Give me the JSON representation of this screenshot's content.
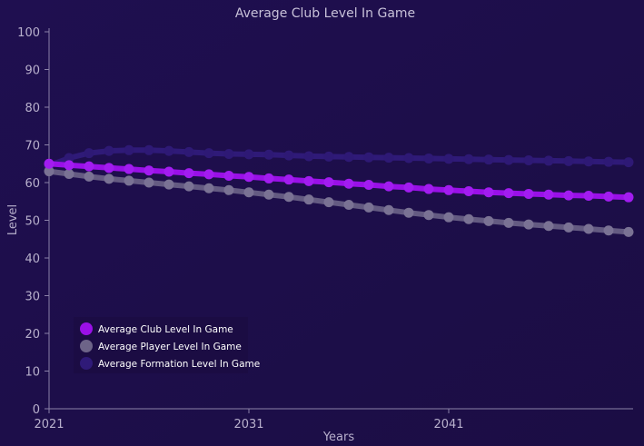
{
  "chart_data": {
    "type": "line",
    "title": "Average Club Level In Game",
    "xlabel": "Years",
    "ylabel": "Level",
    "xlim": [
      2021,
      2050
    ],
    "ylim": [
      0,
      100
    ],
    "x_ticks": [
      "2021",
      "2031",
      "2041"
    ],
    "y_ticks": [
      "0",
      "10",
      "20",
      "30",
      "40",
      "50",
      "60",
      "70",
      "80",
      "90",
      "100"
    ],
    "x": [
      2021,
      2022,
      2023,
      2024,
      2025,
      2026,
      2027,
      2028,
      2029,
      2030,
      2031,
      2032,
      2033,
      2034,
      2035,
      2036,
      2037,
      2038,
      2039,
      2040,
      2041,
      2042,
      2043,
      2044,
      2045,
      2046,
      2047,
      2048,
      2049,
      2050
    ],
    "series": [
      {
        "name": "Average Club Level In Game",
        "color": "#9a10e8",
        "values": [
          65.0,
          64.6,
          64.3,
          63.9,
          63.6,
          63.2,
          62.9,
          62.5,
          62.2,
          61.8,
          61.5,
          61.1,
          60.8,
          60.4,
          60.1,
          59.7,
          59.4,
          59.0,
          58.7,
          58.3,
          58.0,
          57.7,
          57.4,
          57.2,
          57.0,
          56.8,
          56.6,
          56.5,
          56.3,
          56.1
        ]
      },
      {
        "name": "Average Player Level In Game",
        "color": "#6d6488",
        "values": [
          63.0,
          62.3,
          61.6,
          61.0,
          60.5,
          60.0,
          59.5,
          59.0,
          58.5,
          58.0,
          57.4,
          56.8,
          56.2,
          55.5,
          54.8,
          54.1,
          53.4,
          52.7,
          52.0,
          51.4,
          50.8,
          50.3,
          49.8,
          49.3,
          48.9,
          48.5,
          48.1,
          47.7,
          47.3,
          46.9
        ]
      },
      {
        "name": "Average Formation Level In Game",
        "color": "#2f1a78",
        "values": [
          64.5,
          66.5,
          67.8,
          68.4,
          68.6,
          68.6,
          68.4,
          68.1,
          67.8,
          67.6,
          67.5,
          67.4,
          67.2,
          67.0,
          66.9,
          66.8,
          66.7,
          66.6,
          66.5,
          66.4,
          66.3,
          66.2,
          66.1,
          66.0,
          65.9,
          65.8,
          65.7,
          65.6,
          65.5,
          65.4
        ]
      }
    ],
    "grid": false,
    "legend_position": "bottom-left"
  }
}
